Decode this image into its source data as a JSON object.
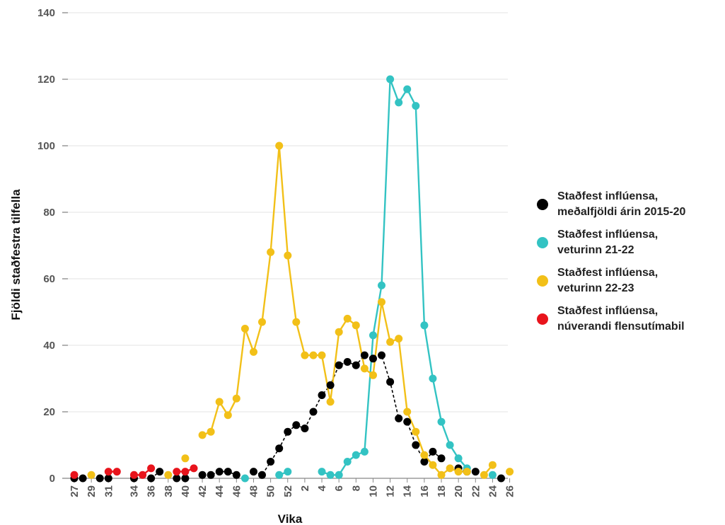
{
  "chart_data": {
    "type": "line",
    "xlabel": "Vika",
    "ylabel": "Fjöldi staðfestra tilfella",
    "ylim": [
      0,
      140
    ],
    "yticks": [
      0,
      20,
      40,
      60,
      80,
      100,
      120,
      140
    ],
    "categories": [
      "27",
      "28",
      "29",
      "30",
      "31",
      "32",
      "33",
      "34",
      "35",
      "36",
      "37",
      "38",
      "39",
      "40",
      "41",
      "42",
      "43",
      "44",
      "45",
      "46",
      "47",
      "48",
      "49",
      "50",
      "51",
      "52",
      "1",
      "2",
      "3",
      "4",
      "5",
      "6",
      "7",
      "8",
      "9",
      "10",
      "11",
      "12",
      "13",
      "14",
      "15",
      "16",
      "17",
      "18",
      "19",
      "20",
      "21",
      "22",
      "23",
      "24",
      "25",
      "26"
    ],
    "xtick_labels": [
      "27",
      "29",
      "31",
      "34",
      "36",
      "38",
      "40",
      "42",
      "44",
      "46",
      "48",
      "50",
      "52",
      "2",
      "4",
      "6",
      "8",
      "10",
      "12",
      "14",
      "16",
      "18",
      "20",
      "22",
      "24",
      "26"
    ],
    "legend_position": "right",
    "grid": "horizontal",
    "series": [
      {
        "name": "Staðfest inflúensa, meðalfjöldi árin 2015-20",
        "color": "#000000",
        "values": [
          0,
          0,
          null,
          0,
          0,
          null,
          null,
          0,
          null,
          0,
          2,
          null,
          0,
          0,
          null,
          1,
          1,
          2,
          2,
          1,
          null,
          2,
          1,
          5,
          9,
          14,
          16,
          15,
          20,
          25,
          28,
          34,
          35,
          34,
          37,
          36,
          37,
          29,
          18,
          17,
          10,
          5,
          8,
          6,
          null,
          3,
          2,
          2,
          null,
          null,
          0,
          null
        ]
      },
      {
        "name": "Staðfest inflúensa, veturinn 21-22",
        "color": "#33c3c3",
        "values": [
          null,
          null,
          null,
          null,
          null,
          null,
          null,
          null,
          null,
          null,
          null,
          null,
          null,
          null,
          null,
          null,
          null,
          null,
          null,
          null,
          0,
          null,
          null,
          null,
          1,
          2,
          null,
          null,
          null,
          2,
          1,
          1,
          5,
          7,
          8,
          43,
          58,
          120,
          113,
          117,
          112,
          46,
          30,
          17,
          10,
          6,
          3,
          null,
          null,
          1,
          null,
          null
        ]
      },
      {
        "name": "Staðfest inflúensa, veturinn 22-23",
        "color": "#f2c018",
        "values": [
          null,
          null,
          1,
          null,
          null,
          null,
          null,
          null,
          null,
          null,
          null,
          1,
          null,
          6,
          null,
          13,
          14,
          23,
          19,
          24,
          45,
          38,
          47,
          68,
          100,
          67,
          47,
          37,
          37,
          37,
          23,
          44,
          48,
          46,
          33,
          31,
          53,
          41,
          42,
          20,
          14,
          7,
          4,
          1,
          3,
          2,
          2,
          null,
          1,
          4,
          null,
          2
        ]
      },
      {
        "name": "Staðfest inflúensa, núverandi flensutímabil",
        "color": "#e8141c",
        "values": [
          1,
          null,
          null,
          null,
          2,
          2,
          null,
          1,
          1,
          3,
          null,
          null,
          2,
          2,
          3,
          null,
          null,
          null,
          null,
          null,
          null,
          null,
          null,
          null,
          null,
          null,
          null,
          null,
          null,
          null,
          null,
          null,
          null,
          null,
          null,
          null,
          null,
          null,
          null,
          null,
          null,
          null,
          null,
          null,
          null,
          null,
          null,
          null,
          null,
          null,
          null,
          null
        ]
      }
    ],
    "legend": [
      {
        "line1": "Staðfest inflúensa,",
        "line2": "meðalfjöldi árin 2015-20",
        "color": "#000000"
      },
      {
        "line1": "Staðfest inflúensa,",
        "line2": "veturinn 21-22",
        "color": "#33c3c3"
      },
      {
        "line1": "Staðfest inflúensa,",
        "line2": "veturinn 22-23",
        "color": "#f2c018"
      },
      {
        "line1": "Staðfest inflúensa,",
        "line2": "núverandi flensutímabil",
        "color": "#e8141c"
      }
    ]
  }
}
